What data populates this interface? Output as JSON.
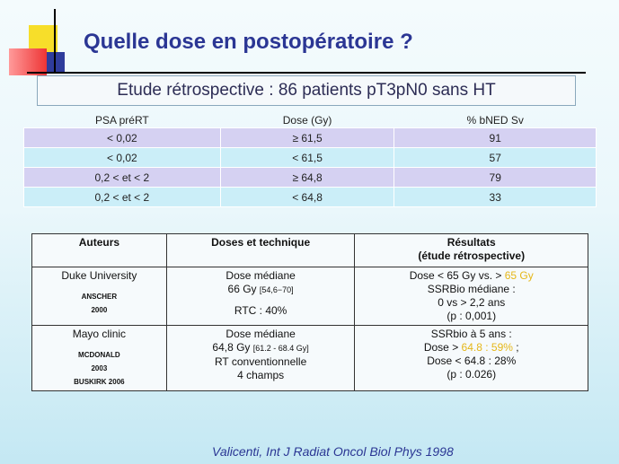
{
  "colors": {
    "title": "#2b3694",
    "highlight": "#e5b719",
    "row_purple": "#d5d1f2",
    "row_blue": "#cbeef8"
  },
  "title": "Quelle dose en postopératoire ?",
  "subtitle": "Etude rétrospective : 86 patients pT3pN0 sans HT",
  "table1": {
    "headers": [
      "PSA préRT",
      "Dose (Gy)",
      "% bNED Sv"
    ],
    "rows": [
      [
        "< 0,02",
        "≥ 61,5",
        "91"
      ],
      [
        "< 0,02",
        "< 61,5",
        "57"
      ],
      [
        "0,2 < et < 2",
        "≥ 64,8",
        "79"
      ],
      [
        "0,2 < et < 2",
        "< 64,8",
        "33"
      ]
    ]
  },
  "table2": {
    "headers": [
      "Auteurs",
      "Doses et technique",
      "Résultats",
      "(étude rétrospective)"
    ],
    "rows": [
      {
        "author": "Duke University",
        "refs": [
          "ANSCHER",
          "2000"
        ],
        "dose_label": "Dose médiane",
        "dose_value": "66 Gy",
        "dose_range": "[54,6−70]",
        "dose_extra": "RTC : 40%",
        "res1_prefix": "Dose < 65 Gy vs. > ",
        "res1_highlight": "65 Gy",
        "res2": "SSRBio médiane :",
        "res3": "0 vs > 2,2 ans",
        "res4": "(p : 0,001)"
      },
      {
        "author": "Mayo clinic",
        "refs": [
          "MCDONALD",
          "2003",
          "BUSKIRK  2006"
        ],
        "dose_label": "Dose médiane",
        "dose_value": "64,8 Gy",
        "dose_range": "[61.2 - 68.4 Gy]",
        "dose_extra": "RT conventionnelle",
        "dose_extra2": "4 champs",
        "res1": "SSRbio à 5 ans :",
        "res2_prefix": "Dose > ",
        "res2_highlight": "64.8 : 59%",
        "res2_suffix": " ;",
        "res3": "Dose < 64.8 : 28%",
        "res4": "(p : 0.026)"
      }
    ]
  },
  "footer": "Valicenti, Int J Radiat Oncol Biol Phys 1998"
}
